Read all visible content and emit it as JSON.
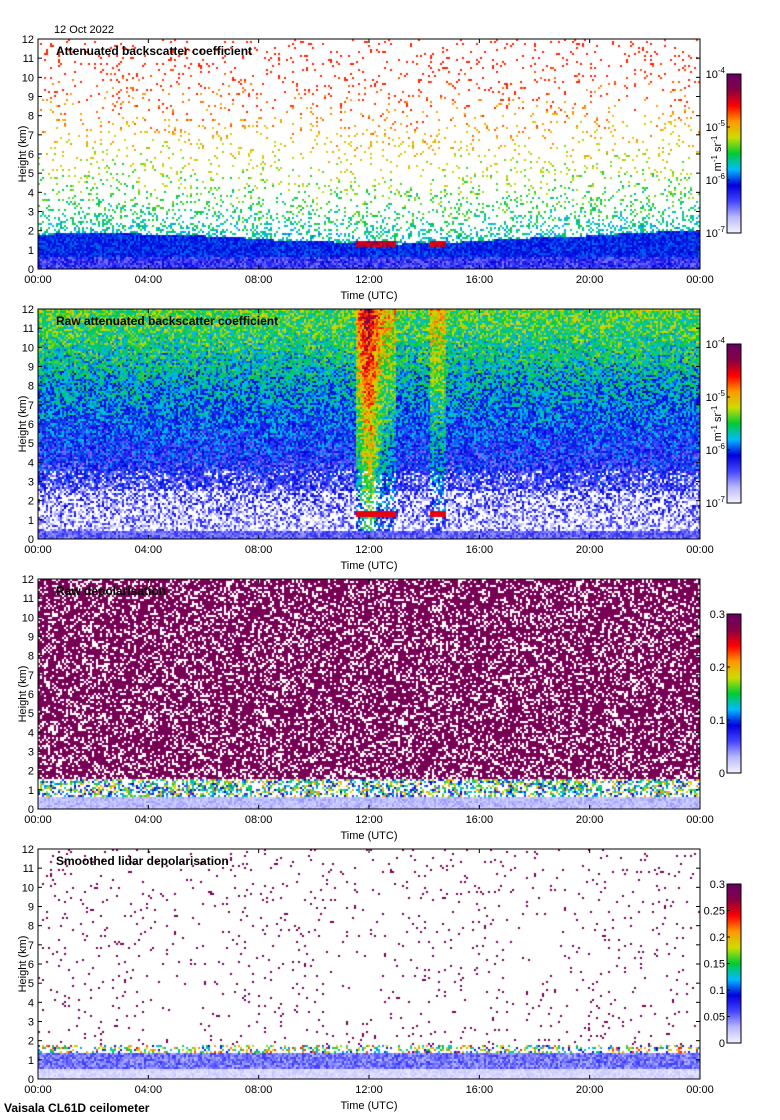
{
  "header": {
    "date": "12 Oct 2022"
  },
  "footer": {
    "instrument": "Vaisala CL61D ceilometer"
  },
  "colormap_stops": [
    "#f4f4ff",
    "#b8b8ff",
    "#4444ff",
    "#0000dd",
    "#00bbff",
    "#00cc33",
    "#ccdd00",
    "#ff9900",
    "#ff0000",
    "#880044",
    "#660066"
  ],
  "chart_data": [
    {
      "type": "heatmap",
      "title": "Attenuated backscatter coefficient",
      "xlabel": "Time (UTC)",
      "ylabel": "Height (km)",
      "x_ticks": [
        "00:00",
        "04:00",
        "08:00",
        "12:00",
        "16:00",
        "20:00",
        "00:00"
      ],
      "y_ticks": [
        "0",
        "1",
        "2",
        "3",
        "4",
        "5",
        "6",
        "7",
        "8",
        "9",
        "10",
        "11",
        "12"
      ],
      "ylim": [
        0,
        12
      ],
      "colorbar": {
        "ticks": [
          "10-7",
          "10-6",
          "10-5",
          "10-4"
        ],
        "scale": "log",
        "range": [
          1e-07,
          0.0001
        ],
        "unit": "m-1 sr-1"
      },
      "features": {
        "kind": "denoised",
        "boundary_layer_top_km": [
          1.8,
          1.9,
          1.8,
          1.7,
          1.5,
          1.4,
          1.3,
          1.4,
          1.6,
          1.7,
          1.9,
          2.0
        ],
        "cloud_base_km": 1.3,
        "cloud_time_hours": [
          11.6,
          14.8
        ]
      }
    },
    {
      "type": "heatmap",
      "title": "Raw attenuated backscatter coefficient",
      "xlabel": "Time (UTC)",
      "ylabel": "Height (km)",
      "x_ticks": [
        "00:00",
        "04:00",
        "08:00",
        "12:00",
        "16:00",
        "20:00",
        "00:00"
      ],
      "y_ticks": [
        "0",
        "1",
        "2",
        "3",
        "4",
        "5",
        "6",
        "7",
        "8",
        "9",
        "10",
        "11",
        "12"
      ],
      "ylim": [
        0,
        12
      ],
      "colorbar": {
        "ticks": [
          "10-7",
          "10-6",
          "10-5",
          "10-4"
        ],
        "scale": "log",
        "range": [
          1e-07,
          0.0001
        ],
        "unit": "m-1 sr-1"
      },
      "features": {
        "kind": "raw",
        "cloud_base_km": 1.3,
        "cloud_time_hours": [
          11.6,
          14.8
        ]
      }
    },
    {
      "type": "heatmap",
      "title": "Raw depolarisation",
      "xlabel": "Time (UTC)",
      "ylabel": "Height (km)",
      "x_ticks": [
        "00:00",
        "04:00",
        "08:00",
        "12:00",
        "16:00",
        "20:00",
        "00:00"
      ],
      "y_ticks": [
        "0",
        "1",
        "2",
        "3",
        "4",
        "5",
        "6",
        "7",
        "8",
        "9",
        "10",
        "11",
        "12"
      ],
      "ylim": [
        0,
        12
      ],
      "colorbar": {
        "ticks": [
          "0",
          "0.1",
          "0.2",
          "0.3"
        ],
        "scale": "linear",
        "range": [
          0,
          0.3
        ]
      },
      "features": {
        "kind": "rawdepol"
      }
    },
    {
      "type": "heatmap",
      "title": "Smoothed lidar depolarisation",
      "xlabel": "Time (UTC)",
      "ylabel": "Height (km)",
      "x_ticks": [
        "00:00",
        "04:00",
        "08:00",
        "12:00",
        "16:00",
        "20:00",
        "00:00"
      ],
      "y_ticks": [
        "0",
        "1",
        "2",
        "3",
        "4",
        "5",
        "6",
        "7",
        "8",
        "9",
        "10",
        "11",
        "12"
      ],
      "ylim": [
        0,
        12
      ],
      "colorbar": {
        "ticks": [
          "0",
          "0.05",
          "0.1",
          "0.15",
          "0.2",
          "0.25",
          "0.3"
        ],
        "scale": "linear",
        "range": [
          0,
          0.3
        ]
      },
      "features": {
        "kind": "smoothdepol"
      }
    }
  ]
}
